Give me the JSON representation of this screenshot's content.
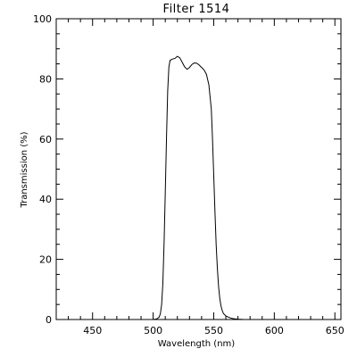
{
  "chart_data": {
    "type": "line",
    "title": "Filter  1514",
    "xlabel": "Wavelength (nm)",
    "ylabel": "Transmission (%)",
    "xlim": [
      420,
      655
    ],
    "ylim": [
      0,
      100
    ],
    "x_ticks": [
      450,
      500,
      550,
      600,
      650
    ],
    "y_ticks": [
      0,
      20,
      40,
      60,
      80,
      100
    ],
    "x_minor_step": 10,
    "y_minor_step": 5,
    "grid": false,
    "legend": "none",
    "line_color": "#000000",
    "series": [
      {
        "x": [
          420,
          495,
          500,
          503,
          505,
          506,
          507,
          508,
          509,
          510,
          511,
          512,
          513,
          514,
          516,
          518,
          520,
          522,
          524,
          526,
          528,
          530,
          532,
          534,
          536,
          538,
          540,
          542,
          544,
          546,
          548,
          549,
          550,
          551,
          552,
          553,
          554,
          555,
          556,
          557,
          558,
          560,
          562,
          564,
          566,
          568,
          570,
          575,
          580,
          655
        ],
        "y": [
          0,
          0,
          0,
          0.2,
          0.8,
          2,
          5,
          12,
          25,
          42,
          60,
          76,
          84,
          86.2,
          86.6,
          86.8,
          87.5,
          87,
          85.5,
          84,
          83.2,
          83.8,
          84.8,
          85.3,
          85.2,
          84.6,
          83.8,
          83,
          81.5,
          78,
          70,
          60,
          48,
          36,
          25,
          17,
          11,
          7,
          4.5,
          3,
          2,
          1.2,
          0.8,
          0.5,
          0.3,
          0.2,
          0.1,
          0,
          0,
          0
        ]
      }
    ]
  }
}
